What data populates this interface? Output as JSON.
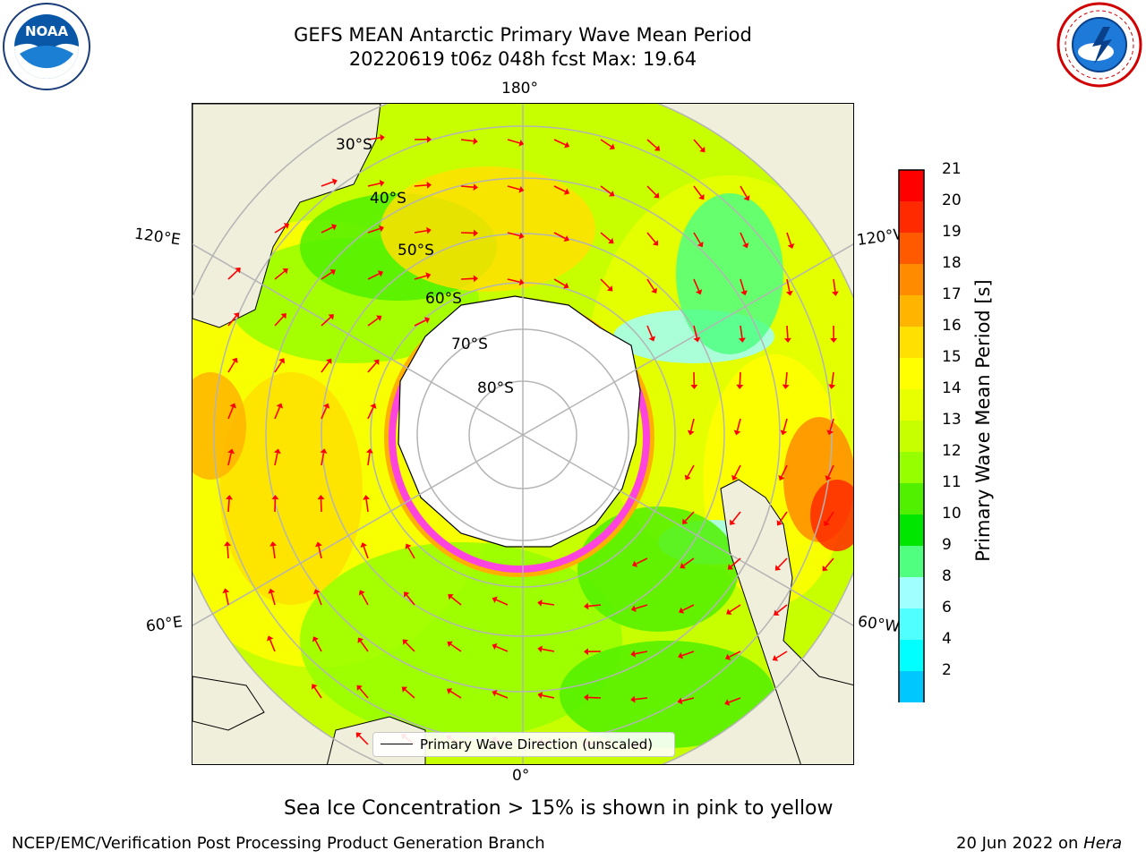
{
  "title": {
    "line1": "GEFS MEAN Antarctic Primary Wave Mean Period",
    "line2": "20220619 t06z 048h fcst   Max: 19.64"
  },
  "logos": {
    "left": {
      "icon": "noaa-logo",
      "text": "NOAA"
    },
    "right": {
      "icon": "nws-logo",
      "text": "NATIONAL WEATHER SERVICE"
    }
  },
  "map": {
    "projection": "south-polar-stereographic",
    "longitude_labels": {
      "top": "180°",
      "bottom": "0°",
      "left_upper": "120°E",
      "left_lower": "60°E",
      "right_upper": "120°W",
      "right_lower": "60°W"
    },
    "latitude_labels": [
      "30°S",
      "40°S",
      "50°S",
      "60°S",
      "70°S",
      "80°S"
    ],
    "colors": {
      "land": "#efefdc",
      "ice_edge": "#ff44dd",
      "ice_inner": "#ffb000",
      "arrow": "#ff0000",
      "grid": "#b4b4b4"
    }
  },
  "legend": {
    "label": "Primary Wave Direction (unscaled)"
  },
  "colorbar": {
    "title": "Primary Wave Mean Period [s]",
    "ticks": [
      "21",
      "20",
      "19",
      "18",
      "17",
      "16",
      "15",
      "14",
      "13",
      "12",
      "11",
      "10",
      "9",
      "8",
      "6",
      "4",
      "2"
    ],
    "colors": [
      "#ff0000",
      "#ff2a00",
      "#ff5a00",
      "#ff8c00",
      "#ffb400",
      "#ffe000",
      "#ffff00",
      "#e8ff00",
      "#c8ff00",
      "#96ff00",
      "#50f000",
      "#00e600",
      "#50ff80",
      "#a0ffff",
      "#50ffff",
      "#00ffff",
      "#00c8ff",
      "#0070ff"
    ],
    "extend_color": "#0000ff"
  },
  "caption": "Sea Ice Concentration > 15% is shown in pink to yellow",
  "footer": {
    "left": "NCEP/EMC/Verification Post Processing Product Generation Branch",
    "right_date": "20 Jun 2022 on ",
    "right_host": "Hera"
  }
}
